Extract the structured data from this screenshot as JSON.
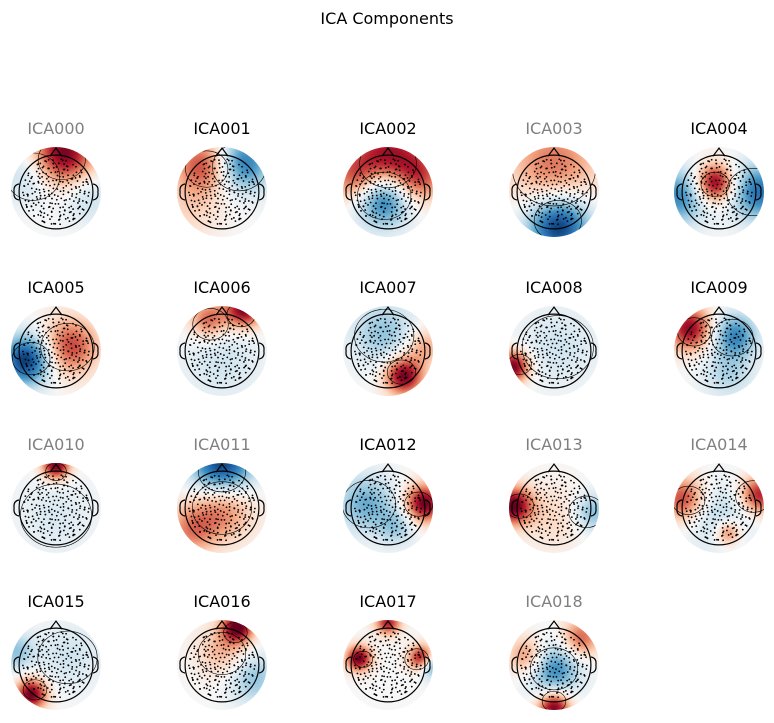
{
  "figure": {
    "title": "ICA Components"
  },
  "chart_data": {
    "type": "topomap-grid",
    "title": "ICA Components",
    "colormap": "RdBu_r",
    "colors": {
      "positive": "#67001f",
      "negative": "#053061",
      "excluded_label": "#808080",
      "label": "#000000"
    },
    "components": [
      {
        "name": "ICA000",
        "excluded": true,
        "blobs": [
          {
            "x": 0.15,
            "y": 0.85,
            "s": 0.5,
            "v": 1.0
          },
          {
            "x": -0.6,
            "y": 0.4,
            "s": 0.45,
            "v": -0.3
          },
          {
            "x": 0.7,
            "y": -0.1,
            "s": 0.4,
            "v": -0.25
          }
        ]
      },
      {
        "name": "ICA001",
        "excluded": false,
        "blobs": [
          {
            "x": -0.4,
            "y": 0.6,
            "s": 0.45,
            "v": 0.7
          },
          {
            "x": 0.45,
            "y": 0.65,
            "s": 0.45,
            "v": -0.75
          },
          {
            "x": -0.7,
            "y": -0.4,
            "s": 0.5,
            "v": 0.2
          }
        ]
      },
      {
        "name": "ICA002",
        "excluded": false,
        "blobs": [
          {
            "x": 0.0,
            "y": 0.75,
            "s": 0.6,
            "v": 0.9
          },
          {
            "x": -0.1,
            "y": -0.1,
            "s": 0.45,
            "v": -0.95
          },
          {
            "x": 0.7,
            "y": 0.3,
            "s": 0.4,
            "v": 0.5
          },
          {
            "x": -0.75,
            "y": 0.3,
            "s": 0.4,
            "v": 0.5
          }
        ]
      },
      {
        "name": "ICA003",
        "excluded": true,
        "blobs": [
          {
            "x": 0.1,
            "y": -0.75,
            "s": 0.5,
            "v": -1.0
          },
          {
            "x": 0.0,
            "y": 0.6,
            "s": 0.7,
            "v": 0.55
          }
        ]
      },
      {
        "name": "ICA004",
        "excluded": false,
        "blobs": [
          {
            "x": -0.1,
            "y": 0.2,
            "s": 0.3,
            "v": 1.0
          },
          {
            "x": 0.9,
            "y": 0.0,
            "s": 0.45,
            "v": -0.75
          },
          {
            "x": -0.9,
            "y": -0.1,
            "s": 0.45,
            "v": -0.65
          }
        ]
      },
      {
        "name": "ICA005",
        "excluded": false,
        "blobs": [
          {
            "x": -0.65,
            "y": -0.2,
            "s": 0.4,
            "v": -1.0
          },
          {
            "x": 0.3,
            "y": 0.1,
            "s": 0.45,
            "v": 0.7
          }
        ]
      },
      {
        "name": "ICA006",
        "excluded": false,
        "blobs": [
          {
            "x": 0.5,
            "y": 0.95,
            "s": 0.3,
            "v": 1.0
          },
          {
            "x": -0.3,
            "y": 0.7,
            "s": 0.3,
            "v": 0.6
          },
          {
            "x": 0.0,
            "y": -0.2,
            "s": 0.6,
            "v": -0.2
          }
        ]
      },
      {
        "name": "ICA007",
        "excluded": false,
        "blobs": [
          {
            "x": 0.35,
            "y": -0.55,
            "s": 0.3,
            "v": 1.0
          },
          {
            "x": -0.1,
            "y": 0.4,
            "s": 0.5,
            "v": -0.4
          },
          {
            "x": 0.8,
            "y": 0.1,
            "s": 0.3,
            "v": 0.4
          }
        ]
      },
      {
        "name": "ICA008",
        "excluded": false,
        "blobs": [
          {
            "x": -0.9,
            "y": -0.35,
            "s": 0.25,
            "v": 1.0
          },
          {
            "x": 0.1,
            "y": 0.1,
            "s": 0.6,
            "v": -0.2
          }
        ]
      },
      {
        "name": "ICA009",
        "excluded": false,
        "blobs": [
          {
            "x": -0.65,
            "y": 0.5,
            "s": 0.35,
            "v": 0.9
          },
          {
            "x": 0.35,
            "y": 0.35,
            "s": 0.35,
            "v": -0.65
          },
          {
            "x": 0.2,
            "y": -0.5,
            "s": 0.4,
            "v": -0.3
          }
        ]
      },
      {
        "name": "ICA010",
        "excluded": true,
        "blobs": [
          {
            "x": 0.0,
            "y": 0.95,
            "s": 0.22,
            "v": 1.0
          },
          {
            "x": 0.0,
            "y": -0.2,
            "s": 0.6,
            "v": -0.15
          }
        ]
      },
      {
        "name": "ICA011",
        "excluded": true,
        "blobs": [
          {
            "x": 0.0,
            "y": 0.95,
            "s": 0.5,
            "v": -1.0
          },
          {
            "x": 0.0,
            "y": 0.0,
            "s": 0.5,
            "v": 0.55
          },
          {
            "x": -0.7,
            "y": -0.5,
            "s": 0.4,
            "v": 0.45
          }
        ]
      },
      {
        "name": "ICA012",
        "excluded": false,
        "blobs": [
          {
            "x": 0.8,
            "y": 0.1,
            "s": 0.3,
            "v": 1.0
          },
          {
            "x": -0.5,
            "y": 0.1,
            "s": 0.45,
            "v": -0.5
          },
          {
            "x": 0.2,
            "y": -0.4,
            "s": 0.3,
            "v": -0.35
          }
        ]
      },
      {
        "name": "ICA013",
        "excluded": true,
        "blobs": [
          {
            "x": -0.9,
            "y": 0.05,
            "s": 0.3,
            "v": 1.0
          },
          {
            "x": 0.85,
            "y": -0.1,
            "s": 0.3,
            "v": -0.45
          },
          {
            "x": 0.0,
            "y": -0.2,
            "s": 0.5,
            "v": 0.2
          }
        ]
      },
      {
        "name": "ICA014",
        "excluded": true,
        "blobs": [
          {
            "x": -0.8,
            "y": 0.2,
            "s": 0.35,
            "v": 0.7
          },
          {
            "x": 0.9,
            "y": 0.3,
            "s": 0.3,
            "v": 0.8
          },
          {
            "x": 0.0,
            "y": -0.2,
            "s": 0.5,
            "v": -0.3
          },
          {
            "x": 0.2,
            "y": -0.55,
            "s": 0.2,
            "v": 0.6
          }
        ]
      },
      {
        "name": "ICA015",
        "excluded": false,
        "blobs": [
          {
            "x": -0.55,
            "y": -0.65,
            "s": 0.25,
            "v": 1.0
          },
          {
            "x": 0.3,
            "y": 0.2,
            "s": 0.5,
            "v": -0.2
          },
          {
            "x": -0.9,
            "y": 0.3,
            "s": 0.3,
            "v": -0.4
          }
        ]
      },
      {
        "name": "ICA016",
        "excluded": false,
        "blobs": [
          {
            "x": 0.35,
            "y": 0.85,
            "s": 0.25,
            "v": 1.0
          },
          {
            "x": 0.0,
            "y": 0.3,
            "s": 0.4,
            "v": 0.35
          },
          {
            "x": 0.7,
            "y": -0.3,
            "s": 0.4,
            "v": -0.4
          }
        ]
      },
      {
        "name": "ICA017",
        "excluded": false,
        "blobs": [
          {
            "x": -0.65,
            "y": 0.15,
            "s": 0.2,
            "v": 1.0
          },
          {
            "x": 0.75,
            "y": 0.15,
            "s": 0.2,
            "v": 1.0
          },
          {
            "x": 0.0,
            "y": 0.95,
            "s": 0.2,
            "v": 0.8
          },
          {
            "x": 0.95,
            "y": 0.0,
            "s": 0.2,
            "v": -0.7
          }
        ]
      },
      {
        "name": "ICA018",
        "excluded": true,
        "blobs": [
          {
            "x": 0.0,
            "y": -0.95,
            "s": 0.25,
            "v": 1.0
          },
          {
            "x": 0.0,
            "y": -0.1,
            "s": 0.4,
            "v": -0.65
          },
          {
            "x": 0.6,
            "y": 0.6,
            "s": 0.3,
            "v": 0.6
          },
          {
            "x": -0.6,
            "y": 0.2,
            "s": 0.3,
            "v": 0.5
          }
        ]
      }
    ]
  }
}
